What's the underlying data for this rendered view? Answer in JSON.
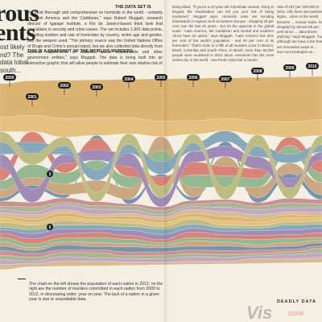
{
  "poster": {
    "title_line1": "rous",
    "title_line2": "ents",
    "side_question": "ost likely nd? The data lobal south...",
    "intro_lead": "THE DATA SET IS",
    "intro_text": "the most thorough and comprehensive on homicide in the world - certainly on Latin America and the Caribbean,\" says Robert Muggah, research director of Igarapé Institute, a Rio de Janeiro-based think tank that specialises in security and crime issues. The set includes 1,841 data points, including number and rate of homicides by country, victim age and gender, and the weapon used. \"The primary source was the United Nations Office of Drugs and Crime's annual report, but we also collected data directly from national departments of statistics, police departments and other government entities,\" says Muggah. The data is being built into an interactive graphic that will allow people to estimate their own relative risk of",
    "section_head": "THIS IS A SNAPSHOT OF THE WORLD'S MURDERS.",
    "col2_text": "being killed. \"If you're a 22-year-old Colombian woman, living in Bogotá, the visualisation can tell you your risk of being murdered,\" Muggah says. Homicide rates are trending downwards in regions such as western Europe - dropping 40 per cent over the last 20 years - but it's the opposite in the global south. \"Latin America, the Caribbean and central and southern Africa have an uptick,\" says Muggah. \"Latin America has nine per cent of the world's population - and 33 per cent of its homicides.\" That's close to a fifth of all murders occur in Mexico, Brazil, Colombia and South Africa. In Brazil, more than 50,000 people were murdered in 2012 alone. Honduras has the most violent city in the world - San Pedro Sula had a murder",
    "right_col_text": "rate of 187 per 100,000 in 2011. Hill, there are positive signs... cities in the world became ... mosaic trade, has dropped by almost 80 per cent since ... data-driven policing,\" says Muggah, \"but although we have a the there are innovative ways to ... low-cost strategies on...",
    "caption": "The chart on the left shows the population of each nation in 2012; on the right are the number of murders committed in each nation from 2000 to 2012, in decreasing order, year on year. The lack of a nation in a given year is due to unavailable data.",
    "footer": "DEADLY DATA",
    "watermark": "Vis",
    "watermark_sub": "zone"
  },
  "chart_data": {
    "type": "area",
    "title": "",
    "xlabel": "",
    "ylabel": "",
    "x": [
      "2000",
      "2001",
      "2002",
      "2003",
      "2004",
      "2005",
      "2006",
      "2007",
      "2008",
      "2009",
      "2010"
    ],
    "year_pills": [
      {
        "label": "2000"
      },
      {
        "label": "2001"
      },
      {
        "label": "2002"
      },
      {
        "label": "2003"
      },
      {
        "label": "2004"
      },
      {
        "label": "2005"
      },
      {
        "label": "2006"
      },
      {
        "label": "2007"
      },
      {
        "label": "2008"
      },
      {
        "label": "2009"
      },
      {
        "label": "2010"
      }
    ],
    "rank_markers": [
      "3",
      "5"
    ],
    "series_colors": [
      "#d9b06a",
      "#e2be79",
      "#b9b97a",
      "#7fa4b7",
      "#9b86b2",
      "#d77c6e",
      "#8fb58a",
      "#c7a37a",
      "#6f8fa8",
      "#c98a8a",
      "#a4b28c",
      "#bfa0c4",
      "#d4b98a"
    ],
    "grid": false,
    "legend": "none"
  }
}
